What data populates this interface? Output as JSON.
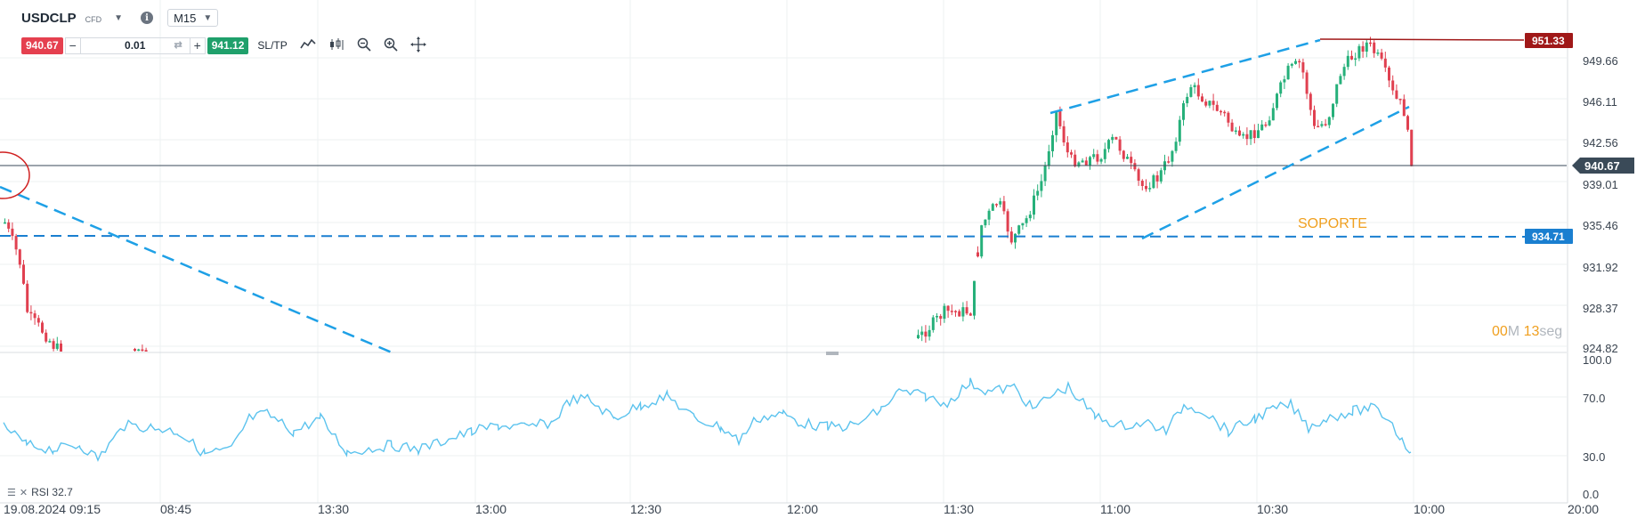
{
  "toolbar": {
    "symbol": "USDCLP",
    "symbol_type": "CFD",
    "caret": "▼",
    "info_glyph": "i",
    "timeframe": "M15",
    "sell_price": "940.67",
    "buy_price": "941.12",
    "minus": "−",
    "plus": "+",
    "quantity": "0.01",
    "sltp": "SL/TP",
    "icons": [
      "line-chart-icon",
      "candlestick-icon",
      "zoom-out-icon",
      "zoom-in-icon",
      "crosshair-icon"
    ]
  },
  "price_axis": {
    "ticks": [
      "949.66",
      "946.11",
      "942.56",
      "939.01",
      "935.46",
      "931.92",
      "928.37",
      "924.82"
    ],
    "current_price": "940.67",
    "resistance_tag": "951.33",
    "support_tag": "934.71"
  },
  "rsi_axis": {
    "ticks": [
      "100.0",
      "70.0",
      "30.0",
      "0.0"
    ]
  },
  "time_axis": {
    "labels": [
      "19.08.2024 09:15",
      "08:45",
      "13:30",
      "13:00",
      "12:30",
      "12:00",
      "11:30",
      "11:00",
      "10:30",
      "10:00",
      "20:00"
    ]
  },
  "annotation": {
    "soporte": "SOPORTE"
  },
  "countdown": {
    "minutes": "00",
    "minutes_unit": "M",
    "seconds": "13",
    "seconds_unit": "seg"
  },
  "rsi_legend": {
    "label": "RSI 32.7"
  },
  "colors": {
    "bull": "#26b07a",
    "bear": "#e04050",
    "trend": "#1ea0e6",
    "rsi": "#5cc3ee",
    "resistance": "#a01818",
    "support": "#1a7fd0",
    "current": "#3a4a58",
    "soporte": "#f0a020"
  }
}
